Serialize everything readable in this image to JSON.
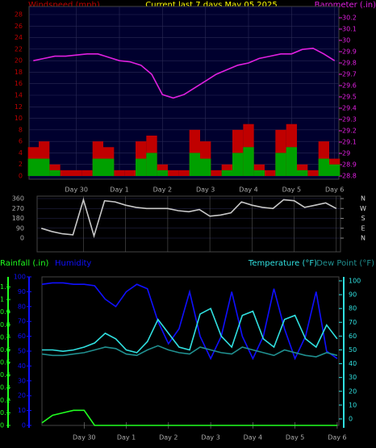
{
  "chart_data": [
    {
      "type": "combo",
      "title": "Current last 7 days May 05 2025",
      "ylabel": "Windspeed (mph)",
      "ycolor": "#c00000",
      "background": "#00002e",
      "grid": true,
      "x": [
        -1,
        -0.75,
        -0.5,
        -0.25,
        0,
        0.25,
        0.5,
        0.75,
        1,
        1.25,
        1.5,
        1.75,
        2,
        2.25,
        2.5,
        2.75,
        3,
        3.25,
        3.5,
        3.75,
        4,
        4.25,
        4.5,
        4.75,
        5,
        5.25,
        5.5,
        5.75,
        6
      ],
      "xlim": [
        -1.1,
        6.1
      ],
      "xticks": [
        {
          "value": 0,
          "label": "Day 30"
        },
        {
          "value": 1,
          "label": "Day 1"
        },
        {
          "value": 2,
          "label": "Day 2"
        },
        {
          "value": 3,
          "label": "Day 3"
        },
        {
          "value": 4,
          "label": "Day 4"
        },
        {
          "value": 5,
          "label": "Day 5"
        },
        {
          "value": 6,
          "label": "Day 6"
        }
      ],
      "ylim": [
        0,
        29.4
      ],
      "yticks": [
        0,
        2,
        4,
        6,
        8,
        10,
        12,
        14,
        16,
        18,
        20,
        22,
        24,
        26,
        28
      ],
      "y2lim": [
        28.8,
        30.3
      ],
      "y2ticks": [
        28.8,
        28.9,
        29,
        29.1,
        29.2,
        29.3,
        29.4,
        29.5,
        29.6,
        29.7,
        29.8,
        29.9,
        30,
        30.1,
        30.2
      ],
      "y2color": "#e020e0",
      "series": [
        {
          "kind": "bar",
          "color": "#c00000",
          "values": [
            5,
            6,
            2,
            1,
            1,
            1,
            6,
            5,
            1,
            1,
            6,
            7,
            2,
            1,
            1,
            8,
            6,
            1,
            2,
            8,
            9,
            2,
            1,
            8,
            9,
            2,
            1,
            6,
            3
          ]
        },
        {
          "kind": "bar",
          "color": "#00a000",
          "values": [
            3,
            3,
            1,
            0,
            0,
            0,
            3,
            3,
            0,
            0,
            3,
            4,
            1,
            0,
            0,
            4,
            3,
            0,
            1,
            4,
            5,
            1,
            0,
            4,
            5,
            1,
            0,
            3,
            2
          ]
        },
        {
          "kind": "line",
          "name": "Barometer (.in)",
          "axis": "y2",
          "color": "#e020e0",
          "values": [
            29.82,
            29.84,
            29.86,
            29.86,
            29.87,
            29.88,
            29.88,
            29.85,
            29.82,
            29.81,
            29.78,
            29.7,
            29.52,
            29.49,
            29.52,
            29.58,
            29.64,
            29.7,
            29.74,
            29.78,
            29.8,
            29.84,
            29.86,
            29.88,
            29.88,
            29.92,
            29.93,
            29.88,
            29.82
          ]
        }
      ]
    },
    {
      "type": "line",
      "background": "#000000",
      "grid": true,
      "x": [
        -1,
        -0.75,
        -0.5,
        -0.25,
        0,
        0.25,
        0.5,
        0.75,
        1,
        1.25,
        1.5,
        1.75,
        2,
        2.25,
        2.5,
        2.75,
        3,
        3.25,
        3.5,
        3.75,
        4,
        4.25,
        4.5,
        4.75,
        5,
        5.25,
        5.5,
        5.75,
        6
      ],
      "xlim": [
        -1.1,
        6.1
      ],
      "ylim": [
        0,
        360
      ],
      "yticks": [
        0,
        90,
        180,
        270,
        360
      ],
      "y2ticks": [
        {
          "value": 360,
          "label": "N"
        },
        {
          "value": 270,
          "label": "W"
        },
        {
          "value": 180,
          "label": "S"
        },
        {
          "value": 90,
          "label": "E"
        },
        {
          "value": 0,
          "label": "N"
        }
      ],
      "series": [
        {
          "kind": "line",
          "color": "#c8c8c8",
          "values": [
            90,
            60,
            40,
            30,
            350,
            20,
            340,
            330,
            300,
            280,
            270,
            270,
            270,
            250,
            240,
            260,
            200,
            210,
            230,
            330,
            300,
            280,
            270,
            350,
            340,
            280,
            300,
            320,
            270
          ]
        }
      ]
    },
    {
      "type": "line",
      "background": "#000000",
      "grid": false,
      "x": [
        -1,
        -0.75,
        -0.5,
        -0.25,
        0,
        0.25,
        0.5,
        0.75,
        1,
        1.25,
        1.5,
        1.75,
        2,
        2.25,
        2.5,
        2.75,
        3,
        3.25,
        3.5,
        3.75,
        4,
        4.25,
        4.5,
        4.75,
        5,
        5.25,
        5.5,
        5.75,
        6
      ],
      "xlim": [
        -1.0,
        6.04
      ],
      "xticks": [
        {
          "value": 0,
          "label": "Day 30"
        },
        {
          "value": 1,
          "label": "Day 1"
        },
        {
          "value": 2,
          "label": "Day 2"
        },
        {
          "value": 3,
          "label": "Day 3"
        },
        {
          "value": 4,
          "label": "Day 4"
        },
        {
          "value": 5,
          "label": "Day 5"
        },
        {
          "value": 6,
          "label": "Day 6"
        }
      ],
      "rain_ylim": [
        0,
        1.18
      ],
      "rain_yticks": [
        0,
        0.1,
        0.2,
        0.3,
        0.4,
        0.5,
        0.6,
        0.7,
        0.8,
        0.9,
        1,
        1.1
      ],
      "rain_color": "#20ff20",
      "ylim": [
        0,
        100
      ],
      "yticks": [
        0,
        10,
        20,
        30,
        40,
        50,
        60,
        70,
        80,
        90,
        100
      ],
      "ycolor": "#1010ff",
      "y2lim": [
        -4.7,
        102.9
      ],
      "y2ticks": [
        0,
        10,
        20,
        30,
        40,
        50,
        60,
        70,
        80,
        90,
        100
      ],
      "y2color": "#30e0e0",
      "series": [
        {
          "kind": "line",
          "name": "Rainfall (.in)",
          "axis": "rain",
          "color": "#20ff20",
          "values": [
            0.02,
            0.08,
            0.1,
            0.12,
            0.12,
            0,
            0,
            0,
            0,
            0,
            0,
            0,
            0,
            0,
            0,
            0,
            0,
            0,
            0,
            0,
            0,
            0,
            0,
            0,
            0,
            0,
            0,
            0,
            0
          ]
        },
        {
          "kind": "line",
          "name": "Humidity",
          "axis": "y",
          "color": "#1010ff",
          "values": [
            95,
            96,
            96,
            95,
            95,
            94,
            85,
            80,
            90,
            95,
            92,
            70,
            55,
            65,
            90,
            60,
            45,
            60,
            90,
            60,
            45,
            60,
            92,
            65,
            45,
            60,
            90,
            50,
            45
          ]
        },
        {
          "kind": "line",
          "name": "Temperature (°F)",
          "axis": "y2",
          "color": "#30e0e0",
          "values": [
            50,
            50,
            49,
            50,
            52,
            55,
            62,
            58,
            50,
            48,
            56,
            72,
            62,
            52,
            50,
            76,
            80,
            60,
            52,
            75,
            78,
            58,
            52,
            72,
            75,
            58,
            52,
            68,
            58
          ]
        },
        {
          "kind": "line",
          "name": "Dew Point (°F)",
          "axis": "y2",
          "color": "#209090",
          "values": [
            47,
            46,
            46,
            47,
            48,
            50,
            52,
            51,
            47,
            46,
            50,
            53,
            50,
            48,
            47,
            52,
            50,
            48,
            47,
            52,
            50,
            48,
            46,
            50,
            48,
            46,
            45,
            48,
            46
          ]
        }
      ]
    }
  ]
}
